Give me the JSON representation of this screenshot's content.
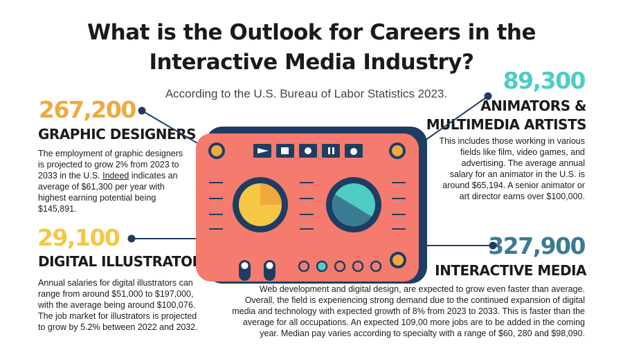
{
  "title_line1": "What is the Outlook for Careers in the",
  "title_line2": "Interactive Media Industry?",
  "subtitle": "According to the U.S. Bureau of Labor Statistics 2023.",
  "graphic": {
    "number": "267,200",
    "heading": "GRAPHIC DESIGNERS",
    "text_a": "The employment of graphic designers is projected to grow 2% from 2023 to 2033 in the U.S. ",
    "text_link": "Indeed",
    "text_b": " indicates an average of $61,300 per year with highest earning potential being $145,891."
  },
  "illustrators": {
    "number": "29,100",
    "heading": "DIGITAL ILLUSTRATORS",
    "text": "Annual salaries for digital illustrators can range from around $51,000 to $197,000, with the average being around $100,076. The job market for illustrators is projected to grow by 5.2% between 2022 and 2032."
  },
  "animators": {
    "number": "89,300",
    "heading_line1": "ANIMATORS &",
    "heading_line2": "MULTIMEDIA ARTISTS",
    "text": "This includes those working in various fields like film, video games, and advertising. The average annual salary for an animator in the U.S. is around $65,194. A senior animator or art director earns over $100,000."
  },
  "interactive": {
    "number": "327,900",
    "heading": "INTERACTIVE MEDIA",
    "text": "Web development and digital design, are expected to grow even faster than average. Overall, the field is experiencing strong demand due to the continued expansion of digital media and technology with expected growth of 8% from 2023 to 2033. This is faster than the average for all occupations. An expected 109,00 more jobs are to be added in the coming year. Median pay varies according to specialty with a range of $60, 280 and $98,090."
  },
  "colors": {
    "orange": "#f0a93c",
    "yellow": "#f6c744",
    "teal": "#4ecdc4",
    "steel": "#3b7a93",
    "navy": "#1f3d63",
    "salmon": "#f47b6e"
  }
}
